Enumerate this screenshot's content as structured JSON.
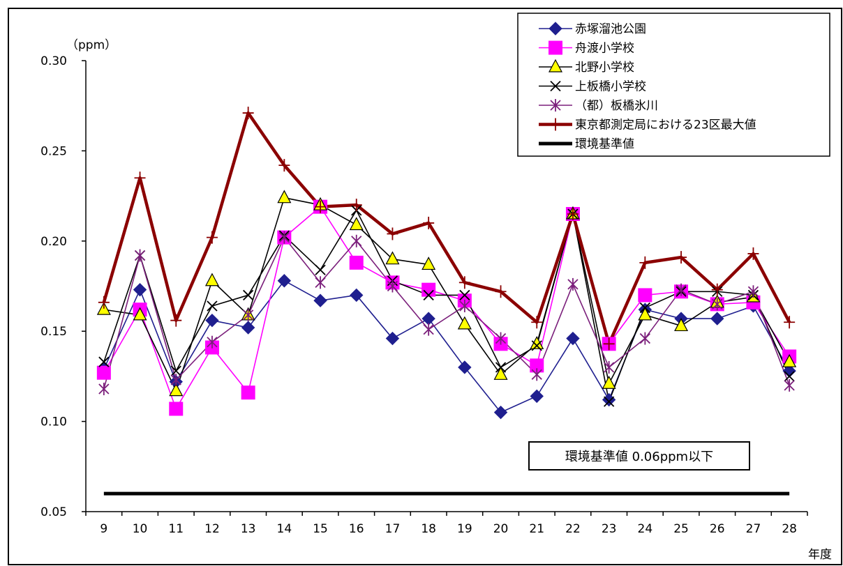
{
  "chart_data": {
    "type": "line",
    "unit_label": "（ppm）",
    "x_axis_unit": "年度",
    "x": [
      "9",
      "10",
      "11",
      "12",
      "13",
      "14",
      "15",
      "16",
      "17",
      "18",
      "19",
      "20",
      "21",
      "22",
      "23",
      "24",
      "25",
      "26",
      "27",
      "28"
    ],
    "y_ticks": [
      "0.30",
      "0.25",
      "0.20",
      "0.15",
      "0.10",
      "0.05"
    ],
    "ylim": [
      0.05,
      0.3
    ],
    "grid": false,
    "legend_placement": "top-right",
    "series": [
      {
        "name": "赤塚溜池公園",
        "color": "#1f1f8f",
        "marker": "diamond",
        "values": [
          0.129,
          0.173,
          0.122,
          0.156,
          0.152,
          0.178,
          0.167,
          0.17,
          0.146,
          0.157,
          0.13,
          0.105,
          0.114,
          0.146,
          0.112,
          0.162,
          0.157,
          0.157,
          0.164,
          0.128
        ]
      },
      {
        "name": "舟渡小学校",
        "color": "#ff00ff",
        "marker": "square",
        "values": [
          0.127,
          0.162,
          0.107,
          0.141,
          0.116,
          0.202,
          0.219,
          0.188,
          0.177,
          0.173,
          0.167,
          0.143,
          0.131,
          0.215,
          0.143,
          0.17,
          0.172,
          0.165,
          0.166,
          0.136
        ]
      },
      {
        "name": "北野小学校",
        "color": "#000000",
        "marker": "triangle",
        "values": [
          0.162,
          0.159,
          0.117,
          0.178,
          0.159,
          0.224,
          0.22,
          0.209,
          0.19,
          0.187,
          0.154,
          0.126,
          0.143,
          0.215,
          0.121,
          0.159,
          0.153,
          0.166,
          0.169,
          0.133
        ]
      },
      {
        "name": "上板橋小学校",
        "color": "#000000",
        "marker": "x",
        "values": [
          0.133,
          0.192,
          0.128,
          0.164,
          0.17,
          0.203,
          0.184,
          0.217,
          0.178,
          0.17,
          0.17,
          0.13,
          0.142,
          0.215,
          0.111,
          0.163,
          0.172,
          0.172,
          0.17,
          0.125
        ]
      },
      {
        "name": "（都）板橋氷川",
        "color": "#7b1f7b",
        "marker": "asterisk",
        "values": [
          0.118,
          0.192,
          0.123,
          0.144,
          0.159,
          0.202,
          0.177,
          0.2,
          0.175,
          0.151,
          0.164,
          0.146,
          0.126,
          0.176,
          0.13,
          0.146,
          0.173,
          0.165,
          0.172,
          0.12
        ]
      },
      {
        "name": "東京都測定局における23区最大値",
        "color": "#8b0000",
        "marker": "plus",
        "values": [
          0.166,
          0.235,
          0.156,
          0.202,
          0.271,
          0.242,
          0.219,
          0.22,
          0.204,
          0.21,
          0.177,
          0.172,
          0.155,
          0.215,
          0.143,
          0.188,
          0.191,
          0.173,
          0.193,
          0.155
        ]
      },
      {
        "name": "環境基準値",
        "color": "#000000",
        "marker": "none",
        "values": [
          0.06,
          0.06,
          0.06,
          0.06,
          0.06,
          0.06,
          0.06,
          0.06,
          0.06,
          0.06,
          0.06,
          0.06,
          0.06,
          0.06,
          0.06,
          0.06,
          0.06,
          0.06,
          0.06,
          0.06
        ]
      }
    ],
    "annotation": "環境基準値 0.06ppm以下"
  }
}
